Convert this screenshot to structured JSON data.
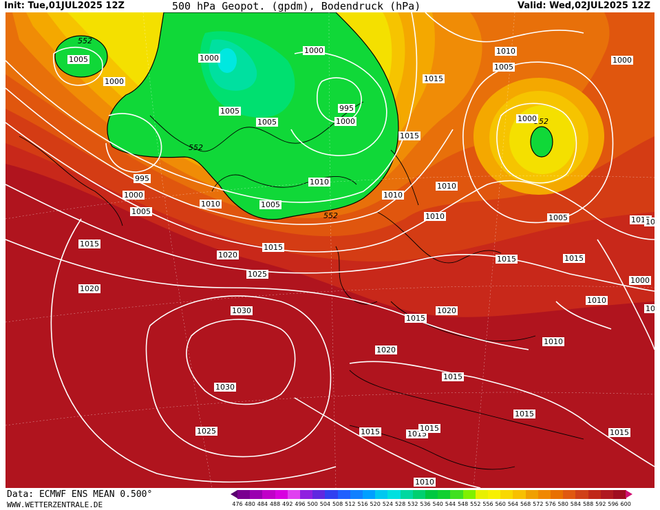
{
  "header": {
    "init": "Init: Tue,01JUL2025 12Z",
    "title": "500 hPa Geopot. (gpdm), Bodendruck (hPa)",
    "valid": "Valid: Wed,02JUL2025 12Z"
  },
  "footer": {
    "data_source": "Data: ECMWF ENS MEAN 0.500°",
    "website": "WWW.WETTERZENTRALE.DE"
  },
  "legend": {
    "values": [
      "476",
      "480",
      "484",
      "488",
      "492",
      "496",
      "500",
      "504",
      "508",
      "512",
      "516",
      "520",
      "524",
      "528",
      "532",
      "536",
      "540",
      "544",
      "548",
      "552",
      "556",
      "560",
      "564",
      "568",
      "572",
      "576",
      "580",
      "584",
      "588",
      "592",
      "596",
      "600"
    ],
    "colors": [
      "#5a0070",
      "#7a0090",
      "#9a00b0",
      "#c000c8",
      "#d800e0",
      "#e040f0",
      "#9020e0",
      "#6028e0",
      "#3040f0",
      "#2060ff",
      "#1080ff",
      "#00a0ff",
      "#00c8f0",
      "#00e0e0",
      "#00d8a0",
      "#00d070",
      "#00c840",
      "#10d030",
      "#40e020",
      "#80f000",
      "#e8f000",
      "#f8f000",
      "#f8d800",
      "#f8c000",
      "#f0a000",
      "#f08800",
      "#e87000",
      "#e05810",
      "#d04018",
      "#c02818",
      "#b01820",
      "#a00c20",
      "#d01070"
    ]
  },
  "map": {
    "colors": {
      "deep_red": "#b0141e",
      "red": "#c8281a",
      "red_orange": "#d43c14",
      "orange_red": "#e0560e",
      "orange": "#e8700a",
      "light_orange": "#f08c06",
      "amber": "#f4a800",
      "gold": "#f6c400",
      "yellow": "#f4e000",
      "green": "#10d838",
      "cyan_green": "#00e0a0",
      "cyan": "#00e8e0"
    },
    "pressure_labels": [
      "1005",
      "1000",
      "1000",
      "1000",
      "1005",
      "1005",
      "995",
      "1000",
      "1010",
      "1005",
      "1015",
      "1015",
      "1010",
      "1005",
      "1000",
      "1010",
      "1010",
      "1005",
      "1015",
      "1010",
      "1000",
      "1015",
      "995",
      "1000",
      "1005",
      "1010",
      "1015",
      "1020",
      "1025",
      "1030",
      "1030",
      "1025",
      "1020",
      "1015",
      "1020",
      "1015",
      "1015",
      "1010",
      "1000",
      "1005",
      "1010",
      "1015",
      "1020",
      "1015",
      "1015",
      "1015",
      "1015",
      "1015",
      "1010",
      "1010"
    ],
    "geopotential_labels": [
      "552",
      "552",
      "552",
      "552"
    ]
  }
}
